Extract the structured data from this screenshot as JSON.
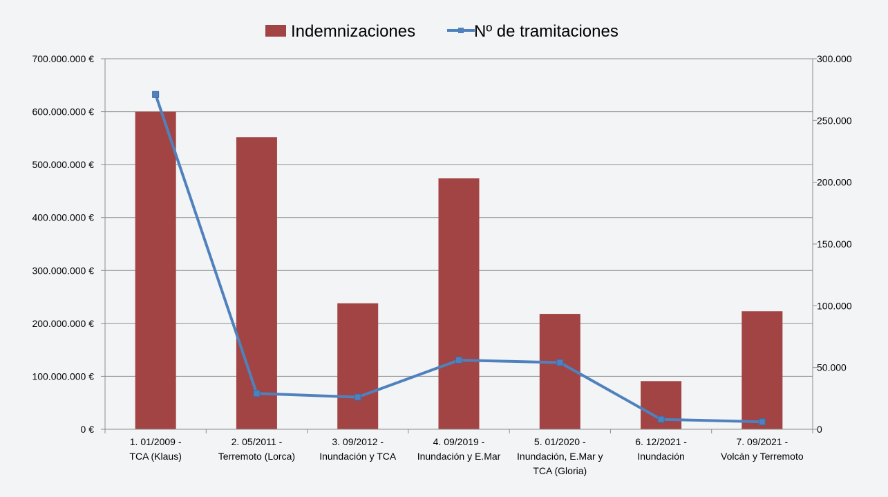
{
  "chart_data": {
    "type": "bar",
    "categories": [
      [
        "1. 01/2009 -",
        "TCA (Klaus)"
      ],
      [
        "2. 05/2011 -",
        "Terremoto (Lorca)"
      ],
      [
        "3. 09/2012 -",
        "Inundación y TCA"
      ],
      [
        "4. 09/2019 -",
        "Inundación y E.Mar"
      ],
      [
        "5. 01/2020 -",
        "Inundación, E.Mar y",
        "TCA (Gloria)"
      ],
      [
        "6. 12/2021 -",
        "Inundación"
      ],
      [
        "7. 09/2021 -",
        "Volcán y Terremoto"
      ]
    ],
    "series": [
      {
        "name": "Indemnizaciones",
        "kind": "bar",
        "axis": "left",
        "color": "#a24443",
        "values": [
          600000000,
          552000000,
          238000000,
          474000000,
          218000000,
          91000000,
          223000000
        ]
      },
      {
        "name": "Nº de tramitaciones",
        "kind": "line",
        "axis": "right",
        "color": "#4f81bd",
        "marker": "square",
        "values": [
          271000,
          29000,
          26000,
          56000,
          54000,
          8000,
          6000
        ]
      }
    ],
    "y_left": {
      "ylim": [
        0,
        700000000
      ],
      "ticks": [
        "0 €",
        "100.000.000 €",
        "200.000.000 €",
        "300.000.000 €",
        "400.000.000 €",
        "500.000.000 €",
        "600.000.000 €",
        "700.000.000 €"
      ]
    },
    "y_right": {
      "ylim": [
        0,
        300000
      ],
      "ticks": [
        "0",
        "50.000",
        "100.000",
        "150.000",
        "200.000",
        "250.000",
        "300.000"
      ]
    },
    "grid": true,
    "legend_position": "top-center"
  }
}
